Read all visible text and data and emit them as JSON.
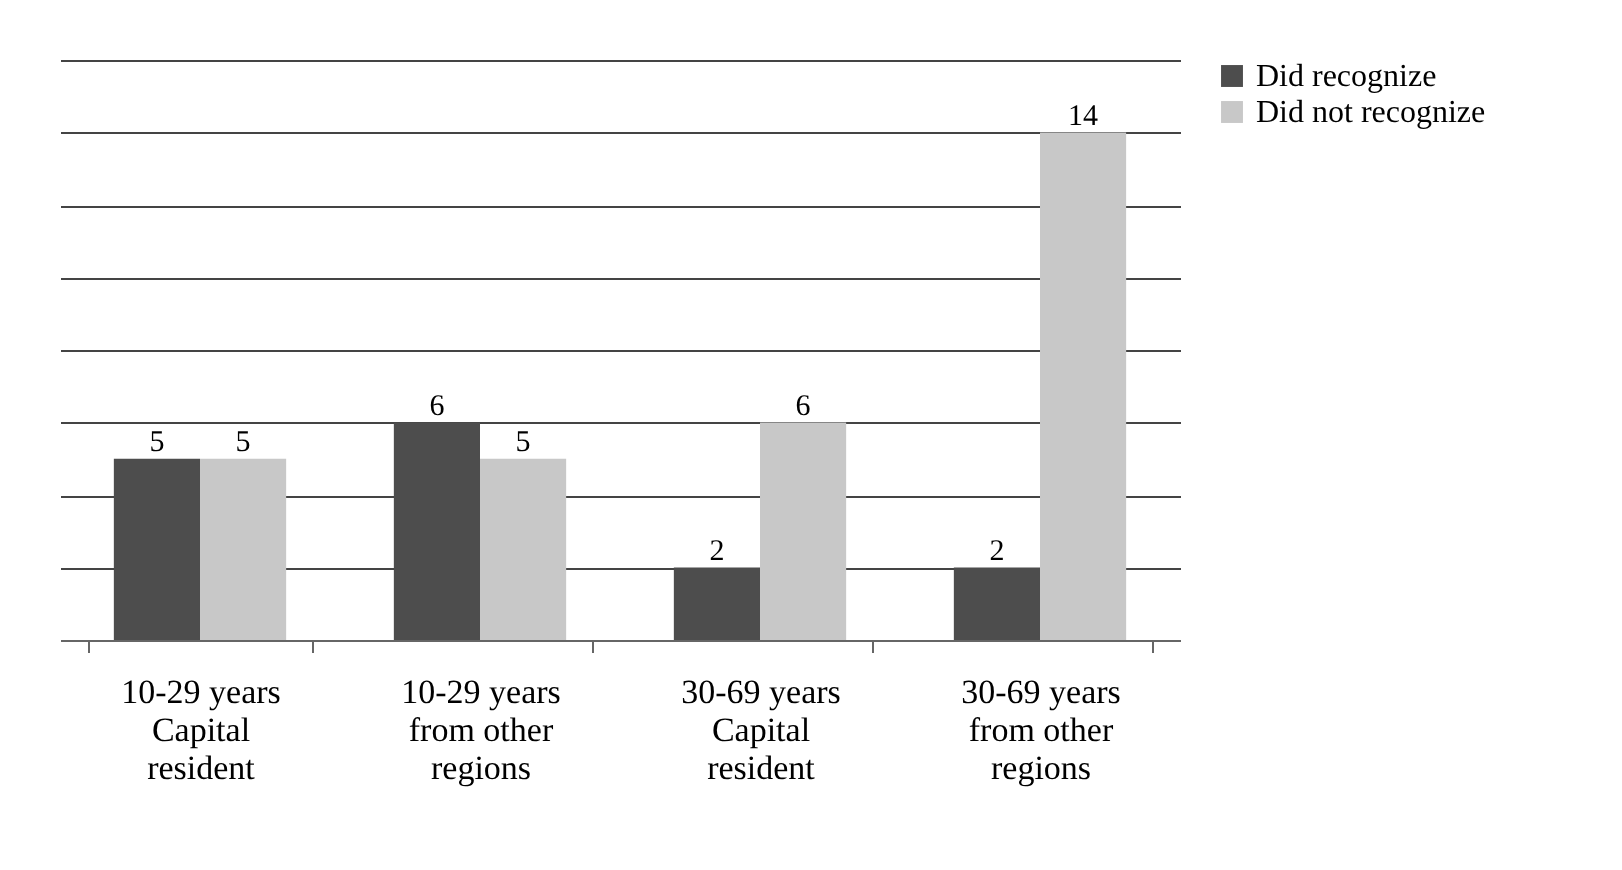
{
  "chart_data": {
    "type": "bar",
    "categories": [
      "10-29 years\nCapital\nresident",
      "10-29 years\nfrom other\nregions",
      "30-69 years\nCapital\nresident",
      "30-69 years\nfrom other\nregions"
    ],
    "series": [
      {
        "name": "Did recognize",
        "color": "#4d4d4d",
        "values": [
          5,
          6,
          2,
          2
        ]
      },
      {
        "name": "Did not recognize",
        "color": "#c8c8c8",
        "values": [
          5,
          5,
          6,
          14
        ]
      }
    ],
    "ylim": [
      0,
      16
    ],
    "yticks": [
      {
        "value": 0,
        "label": null
      },
      {
        "value": 2,
        "label": null
      },
      {
        "value": 4,
        "label": null
      },
      {
        "value": 6,
        "label": null
      },
      {
        "value": 8,
        "label": null
      },
      {
        "value": 10,
        "label": null
      },
      {
        "value": 12,
        "label": null
      },
      {
        "value": 14,
        "label": null
      },
      {
        "value": 16,
        "label": null
      }
    ],
    "grid": "y",
    "legend": "right",
    "tick_labels": "x",
    "data_labels": true
  }
}
